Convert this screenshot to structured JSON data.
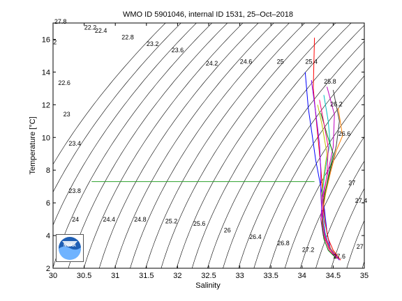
{
  "chart_data": {
    "type": "line",
    "title": "WMO ID 5901046, internal ID 1531, 25–Oct–2018",
    "xlabel": "Salinity",
    "ylabel": "Temperature [°C]",
    "xlim": [
      30,
      35
    ],
    "ylim": [
      2,
      17
    ],
    "xticks": [
      30,
      30.5,
      31,
      31.5,
      32,
      32.5,
      33,
      33.5,
      34,
      34.5,
      35
    ],
    "xtick_labels": [
      "30",
      "30.5",
      "31",
      "31.5",
      "32",
      "32.5",
      "33",
      "33.5",
      "34",
      "34.5",
      "35"
    ],
    "yticks": [
      2,
      4,
      6,
      8,
      10,
      12,
      14,
      16
    ],
    "ytick_labels": [
      "2",
      "4",
      "6",
      "8",
      "10",
      "12",
      "14",
      "16"
    ],
    "grid": false,
    "density_contours": [
      22,
      22.2,
      22.4,
      22.6,
      22.8,
      23,
      23.2,
      23.4,
      23.6,
      23.8,
      24,
      24.2,
      24.4,
      24.6,
      24.8,
      25,
      25.2,
      25.4,
      25.6,
      25.8,
      26,
      26.2,
      26.4,
      26.6,
      26.8,
      27,
      27.2,
      27.4,
      27.6
    ],
    "contour_labels": [
      {
        "text": "27.8",
        "s": 30.12,
        "t": 16.95
      },
      {
        "text": "22.2",
        "s": 30.6,
        "t": 16.6
      },
      {
        "text": "22.4",
        "s": 30.77,
        "t": 16.4
      },
      {
        "text": "2",
        "s": 30.03,
        "t": 15.7
      },
      {
        "text": "22.8",
        "s": 31.2,
        "t": 16.0
      },
      {
        "text": "23.2",
        "s": 31.6,
        "t": 15.6
      },
      {
        "text": "23.6",
        "s": 32.0,
        "t": 15.2
      },
      {
        "text": "24.2",
        "s": 32.55,
        "t": 14.4
      },
      {
        "text": "24.6",
        "s": 33.1,
        "t": 14.5
      },
      {
        "text": "25",
        "s": 33.65,
        "t": 14.5
      },
      {
        "text": "25.4",
        "s": 34.15,
        "t": 14.5
      },
      {
        "text": "22.6",
        "s": 30.18,
        "t": 13.2
      },
      {
        "text": "25.8",
        "s": 34.45,
        "t": 13.3
      },
      {
        "text": "26.2",
        "s": 34.55,
        "t": 11.9
      },
      {
        "text": "23",
        "s": 30.22,
        "t": 11.3
      },
      {
        "text": "26.6",
        "s": 34.68,
        "t": 10.1
      },
      {
        "text": "23.4",
        "s": 30.35,
        "t": 9.5
      },
      {
        "text": "27",
        "s": 34.8,
        "t": 7.1
      },
      {
        "text": "23.8",
        "s": 30.35,
        "t": 6.6
      },
      {
        "text": "27.4",
        "s": 34.95,
        "t": 6.0
      },
      {
        "text": "24",
        "s": 30.36,
        "t": 4.85
      },
      {
        "text": "24.4",
        "s": 30.9,
        "t": 4.85
      },
      {
        "text": "24.8",
        "s": 31.4,
        "t": 4.85
      },
      {
        "text": "25.2",
        "s": 31.9,
        "t": 4.75
      },
      {
        "text": "25.6",
        "s": 32.35,
        "t": 4.6
      },
      {
        "text": "26",
        "s": 32.8,
        "t": 4.2
      },
      {
        "text": "26.4",
        "s": 33.25,
        "t": 3.8
      },
      {
        "text": "26.8",
        "s": 33.7,
        "t": 3.4
      },
      {
        "text": "27.2",
        "s": 34.1,
        "t": 3.0
      },
      {
        "text": "27.6",
        "s": 34.6,
        "t": 2.6
      },
      {
        "text": "27",
        "s": 34.93,
        "t": 3.2
      }
    ],
    "series": [
      {
        "color": "#2ca02c",
        "x": [
          30.62,
          34.2
        ],
        "y": [
          7.3,
          7.3
        ]
      },
      {
        "color": "#0000ff",
        "x": [
          34.05,
          34.1,
          34.16,
          34.22,
          34.3,
          34.36,
          34.4,
          34.45,
          34.5
        ],
        "y": [
          14.0,
          11.8,
          10.2,
          8.6,
          7.0,
          5.6,
          4.2,
          3.3,
          2.8
        ]
      },
      {
        "color": "#ff0000",
        "x": [
          34.2,
          34.18,
          34.24,
          34.3,
          34.33,
          34.36,
          34.42,
          34.5,
          34.62
        ],
        "y": [
          16.1,
          13.0,
          10.6,
          8.2,
          6.6,
          5.0,
          3.8,
          3.1,
          2.5
        ]
      },
      {
        "color": "#00bfbf",
        "x": [
          34.35,
          34.42,
          34.45,
          34.38,
          34.33,
          34.34,
          34.37,
          34.43,
          34.55
        ],
        "y": [
          12.6,
          11.0,
          9.7,
          8.2,
          6.7,
          5.3,
          4.2,
          3.3,
          2.7
        ]
      },
      {
        "color": "#bf00bf",
        "x": [
          34.4,
          34.52,
          34.5,
          34.41,
          34.33,
          34.3,
          34.34,
          34.44,
          34.58
        ],
        "y": [
          13.1,
          11.4,
          9.4,
          7.8,
          6.4,
          5.0,
          4.0,
          3.2,
          2.6
        ]
      },
      {
        "color": "#bfbf00",
        "x": [
          34.25,
          34.32,
          34.4,
          34.35,
          34.31,
          34.32,
          34.38,
          34.46,
          34.56
        ],
        "y": [
          12.0,
          10.8,
          9.0,
          7.7,
          6.3,
          4.9,
          3.9,
          3.2,
          2.7
        ]
      },
      {
        "color": "#404040",
        "x": [
          34.5,
          34.6,
          34.55,
          34.45,
          34.36,
          34.33,
          34.36,
          34.45,
          34.6
        ],
        "y": [
          12.9,
          11.0,
          9.5,
          7.9,
          6.5,
          5.1,
          4.0,
          3.2,
          2.5
        ]
      },
      {
        "color": "#008000",
        "x": [
          34.3,
          34.4,
          34.5,
          34.42,
          34.35,
          34.32,
          34.35,
          34.42,
          34.55
        ],
        "y": [
          11.5,
          10.2,
          9.0,
          7.6,
          6.2,
          4.8,
          3.8,
          3.1,
          2.6
        ]
      },
      {
        "color": "#ff8000",
        "x": [
          34.58,
          34.65,
          34.55,
          34.46,
          34.38,
          34.32,
          34.36,
          34.44,
          34.57
        ],
        "y": [
          11.8,
          10.1,
          9.2,
          7.9,
          6.6,
          5.2,
          4.0,
          3.2,
          2.6
        ]
      },
      {
        "color": "#8000ff",
        "x": [
          34.15,
          34.22,
          34.28,
          34.3,
          34.3,
          34.32,
          34.37,
          34.45,
          34.6
        ],
        "y": [
          13.5,
          11.5,
          9.6,
          8.0,
          6.6,
          5.2,
          4.0,
          3.2,
          2.5
        ]
      },
      {
        "color": "#ff0080",
        "x": [
          34.28,
          34.35,
          34.42,
          34.4,
          34.34,
          34.33,
          34.36,
          34.44,
          34.57
        ],
        "y": [
          12.3,
          10.9,
          9.4,
          7.7,
          6.3,
          5.0,
          3.9,
          3.1,
          2.6
        ]
      }
    ]
  },
  "logo": {
    "text": "NOAA"
  }
}
